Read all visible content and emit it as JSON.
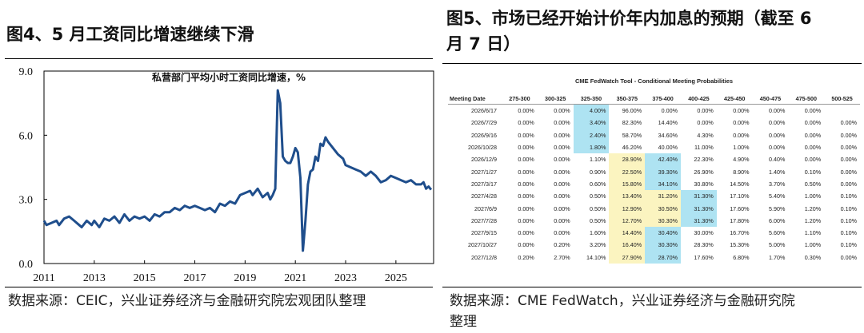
{
  "left_panel": {
    "title": "图4、5 月工资同比增速继续下滑",
    "chart_title": "私营部门平均小时工资同比增速，%",
    "source": "数据来源：CEIC，兴业证券经济与金融研究院宏观团队整理"
  },
  "right_panel": {
    "title_line1": "图5、市场已经开始计价年内加息的预期（截至 6",
    "title_line2": "月 7 日）",
    "table_title": "CME FedWatch Tool - Conditional Meeting Probabilities",
    "source_line1": "数据来源：CME FedWatch，兴业证券经济与金融研究院",
    "source_line2": "整理"
  },
  "colors": {
    "line": "#1f4e8c",
    "highlight_blue": "#aee3f2",
    "highlight_yellow": "#fbf4c0"
  },
  "chart_data": [
    {
      "type": "line",
      "title": "私营部门平均小时工资同比增速，%",
      "xlabel": "",
      "ylabel": "",
      "ylim": [
        0,
        9
      ],
      "xlim": [
        2011.0,
        2026.5
      ],
      "yticks": [
        "0.0",
        "3.0",
        "6.0",
        "9.0"
      ],
      "xticks": [
        "2011",
        "2013",
        "2015",
        "2017",
        "2019",
        "2021",
        "2023",
        "2025"
      ],
      "legend": "none",
      "grid": false,
      "series": [
        {
          "values": [
            [
              2011.0,
              2.0
            ],
            [
              2011.1,
              1.8
            ],
            [
              2011.3,
              1.9
            ],
            [
              2011.5,
              2.0
            ],
            [
              2011.6,
              1.8
            ],
            [
              2011.8,
              2.1
            ],
            [
              2012.0,
              2.2
            ],
            [
              2012.2,
              2.0
            ],
            [
              2012.4,
              1.8
            ],
            [
              2012.5,
              1.7
            ],
            [
              2012.7,
              2.0
            ],
            [
              2012.9,
              1.8
            ],
            [
              2013.0,
              2.0
            ],
            [
              2013.2,
              1.7
            ],
            [
              2013.4,
              2.1
            ],
            [
              2013.6,
              2.0
            ],
            [
              2013.8,
              2.2
            ],
            [
              2014.0,
              1.9
            ],
            [
              2014.2,
              2.3
            ],
            [
              2014.4,
              2.0
            ],
            [
              2014.6,
              2.2
            ],
            [
              2014.8,
              2.1
            ],
            [
              2015.0,
              2.2
            ],
            [
              2015.2,
              2.0
            ],
            [
              2015.4,
              2.3
            ],
            [
              2015.6,
              2.2
            ],
            [
              2015.8,
              2.4
            ],
            [
              2016.0,
              2.4
            ],
            [
              2016.2,
              2.6
            ],
            [
              2016.4,
              2.5
            ],
            [
              2016.6,
              2.7
            ],
            [
              2016.8,
              2.6
            ],
            [
              2017.0,
              2.7
            ],
            [
              2017.2,
              2.6
            ],
            [
              2017.4,
              2.5
            ],
            [
              2017.6,
              2.6
            ],
            [
              2017.8,
              2.4
            ],
            [
              2018.0,
              2.8
            ],
            [
              2018.2,
              2.7
            ],
            [
              2018.4,
              2.9
            ],
            [
              2018.6,
              2.8
            ],
            [
              2018.8,
              3.2
            ],
            [
              2019.0,
              3.3
            ],
            [
              2019.2,
              3.4
            ],
            [
              2019.3,
              3.2
            ],
            [
              2019.5,
              3.5
            ],
            [
              2019.7,
              3.1
            ],
            [
              2019.9,
              3.3
            ],
            [
              2020.0,
              3.0
            ],
            [
              2020.1,
              3.2
            ],
            [
              2020.2,
              3.5
            ],
            [
              2020.3,
              8.1
            ],
            [
              2020.4,
              7.5
            ],
            [
              2020.5,
              5.0
            ],
            [
              2020.6,
              4.8
            ],
            [
              2020.7,
              4.7
            ],
            [
              2020.8,
              4.7
            ],
            [
              2020.9,
              5.0
            ],
            [
              2021.0,
              5.4
            ],
            [
              2021.1,
              5.2
            ],
            [
              2021.2,
              4.0
            ],
            [
              2021.3,
              0.6
            ],
            [
              2021.4,
              2.0
            ],
            [
              2021.5,
              3.7
            ],
            [
              2021.6,
              4.3
            ],
            [
              2021.7,
              4.4
            ],
            [
              2021.8,
              5.0
            ],
            [
              2021.9,
              4.8
            ],
            [
              2022.0,
              5.6
            ],
            [
              2022.1,
              5.5
            ],
            [
              2022.2,
              5.9
            ],
            [
              2022.3,
              5.7
            ],
            [
              2022.5,
              5.4
            ],
            [
              2022.7,
              5.1
            ],
            [
              2022.9,
              4.9
            ],
            [
              2023.0,
              4.6
            ],
            [
              2023.2,
              4.5
            ],
            [
              2023.4,
              4.4
            ],
            [
              2023.6,
              4.3
            ],
            [
              2023.8,
              4.1
            ],
            [
              2024.0,
              4.3
            ],
            [
              2024.2,
              4.1
            ],
            [
              2024.4,
              3.8
            ],
            [
              2024.6,
              3.9
            ],
            [
              2024.8,
              4.1
            ],
            [
              2025.0,
              4.0
            ],
            [
              2025.2,
              3.9
            ],
            [
              2025.4,
              3.8
            ],
            [
              2025.6,
              3.9
            ],
            [
              2025.8,
              3.7
            ],
            [
              2026.0,
              3.7
            ],
            [
              2026.1,
              3.8
            ],
            [
              2026.2,
              3.5
            ],
            [
              2026.3,
              3.6
            ],
            [
              2026.4,
              3.45
            ]
          ]
        }
      ]
    },
    {
      "type": "table",
      "title": "CME FedWatch Tool - Conditional Meeting Probabilities",
      "columns": [
        "Meeting Date",
        "275-300",
        "300-325",
        "325-350",
        "350-375",
        "375-400",
        "400-425",
        "425-450",
        "450-475",
        "475-500",
        "500-525"
      ],
      "rows": [
        [
          "2026/6/17",
          "0.00%",
          "0.00%",
          "4.00%",
          "96.00%",
          "0.00%",
          "0.00%",
          "0.00%",
          "0.00%",
          "0.00%",
          ""
        ],
        [
          "2026/7/29",
          "0.00%",
          "0.00%",
          "3.40%",
          "82.30%",
          "14.40%",
          "0.00%",
          "0.00%",
          "0.00%",
          "0.00%",
          "0.00%"
        ],
        [
          "2026/9/16",
          "0.00%",
          "0.00%",
          "2.40%",
          "58.70%",
          "34.60%",
          "4.30%",
          "0.00%",
          "0.00%",
          "0.00%",
          "0.00%"
        ],
        [
          "2026/10/28",
          "0.00%",
          "0.00%",
          "1.80%",
          "46.20%",
          "40.00%",
          "11.00%",
          "1.00%",
          "0.00%",
          "0.00%",
          "0.00%"
        ],
        [
          "2026/12/9",
          "0.00%",
          "0.00%",
          "1.10%",
          "28.90%",
          "42.40%",
          "22.30%",
          "4.90%",
          "0.40%",
          "0.00%",
          "0.00%"
        ],
        [
          "2027/1/27",
          "0.00%",
          "0.00%",
          "0.90%",
          "22.50%",
          "39.30%",
          "26.90%",
          "8.90%",
          "1.40%",
          "0.10%",
          "0.00%"
        ],
        [
          "2027/3/17",
          "0.00%",
          "0.00%",
          "0.60%",
          "15.80%",
          "34.10%",
          "30.80%",
          "14.50%",
          "3.70%",
          "0.50%",
          "0.00%"
        ],
        [
          "2027/4/28",
          "0.00%",
          "0.00%",
          "0.50%",
          "13.40%",
          "31.20%",
          "31.30%",
          "17.10%",
          "5.40%",
          "1.00%",
          "0.10%"
        ],
        [
          "2027/6/9",
          "0.00%",
          "0.00%",
          "0.50%",
          "12.90%",
          "30.50%",
          "31.30%",
          "17.60%",
          "5.90%",
          "1.20%",
          "0.10%"
        ],
        [
          "2027/7/28",
          "0.00%",
          "0.00%",
          "0.50%",
          "12.70%",
          "30.30%",
          "31.30%",
          "17.80%",
          "6.00%",
          "1.20%",
          "0.10%"
        ],
        [
          "2027/9/15",
          "0.00%",
          "0.00%",
          "1.60%",
          "14.40%",
          "30.40%",
          "30.00%",
          "16.70%",
          "5.60%",
          "1.10%",
          "0.10%"
        ],
        [
          "2027/10/27",
          "0.00%",
          "0.20%",
          "3.20%",
          "16.40%",
          "30.30%",
          "28.30%",
          "15.30%",
          "5.00%",
          "1.00%",
          "0.10%"
        ],
        [
          "2027/12/8",
          "0.20%",
          "2.70%",
          "14.10%",
          "27.90%",
          "28.70%",
          "17.60%",
          "6.80%",
          "1.70%",
          "0.30%",
          "0.00%"
        ]
      ],
      "highlights": [
        [
          null,
          null,
          null,
          "blue",
          null,
          null,
          null,
          null,
          null,
          null,
          null
        ],
        [
          null,
          null,
          null,
          "blue",
          null,
          null,
          null,
          null,
          null,
          null,
          null
        ],
        [
          null,
          null,
          null,
          "blue",
          null,
          null,
          null,
          null,
          null,
          null,
          null
        ],
        [
          null,
          null,
          null,
          "blue",
          null,
          null,
          null,
          null,
          null,
          null,
          null
        ],
        [
          null,
          null,
          null,
          null,
          "yellow",
          "blue",
          null,
          null,
          null,
          null,
          null
        ],
        [
          null,
          null,
          null,
          null,
          "yellow",
          "blue",
          null,
          null,
          null,
          null,
          null
        ],
        [
          null,
          null,
          null,
          null,
          "yellow",
          "blue",
          null,
          null,
          null,
          null,
          null
        ],
        [
          null,
          null,
          null,
          null,
          "yellow",
          "yellow",
          "blue",
          null,
          null,
          null,
          null
        ],
        [
          null,
          null,
          null,
          null,
          "yellow",
          "yellow",
          "blue",
          null,
          null,
          null,
          null
        ],
        [
          null,
          null,
          null,
          null,
          "yellow",
          "yellow",
          "blue",
          null,
          null,
          null,
          null
        ],
        [
          null,
          null,
          null,
          null,
          "yellow",
          "blue",
          null,
          null,
          null,
          null,
          null
        ],
        [
          null,
          null,
          null,
          null,
          "yellow",
          "blue",
          null,
          null,
          null,
          null,
          null
        ],
        [
          null,
          null,
          null,
          null,
          "yellow",
          "blue",
          null,
          null,
          null,
          null,
          null
        ]
      ]
    }
  ]
}
